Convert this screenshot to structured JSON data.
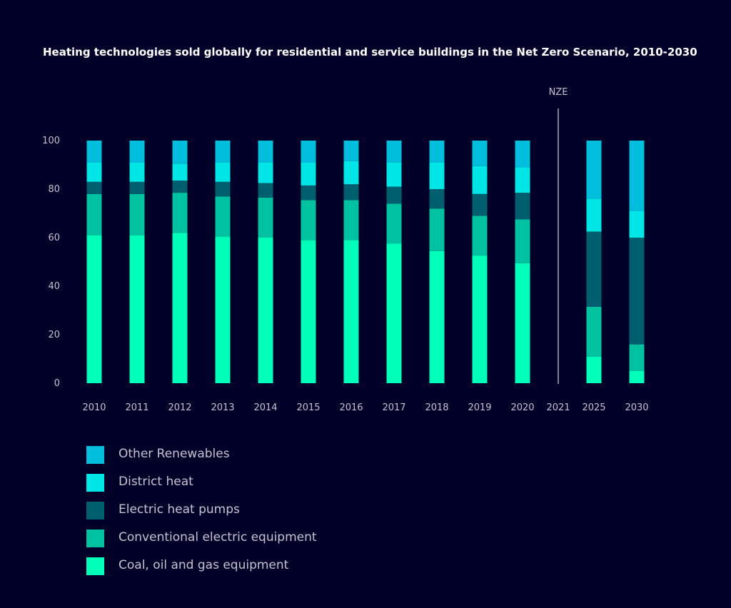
{
  "chart_data": {
    "type": "bar",
    "stacked": true,
    "title": "Heating technologies sold globally for residential and service buildings in the Net Zero Scenario, 2010-2030",
    "xlabel": "",
    "ylabel": "",
    "ylim": [
      0,
      100
    ],
    "yticks": [
      "0",
      "20",
      "40",
      "60",
      "80",
      "100"
    ],
    "categories": [
      "2010",
      "2011",
      "2012",
      "2013",
      "2014",
      "2015",
      "2016",
      "2017",
      "2018",
      "2019",
      "2020",
      "2021",
      "2025",
      "2030"
    ],
    "divider": {
      "after_category": "2021",
      "label": "NZE"
    },
    "grid": false,
    "legend_position": "bottom-left",
    "series": [
      {
        "name": "Coal, oil and gas equipment",
        "color": "#00ffb9",
        "values": [
          61,
          61,
          62,
          60.5,
          60,
          59,
          59,
          57.5,
          54.5,
          52.5,
          49.5,
          null,
          11,
          5
        ]
      },
      {
        "name": "Conventional electric equipment",
        "color": "#00c1a0",
        "values": [
          17,
          17,
          16.5,
          16.5,
          16.5,
          16.5,
          16.5,
          16.5,
          17.5,
          16.5,
          18,
          null,
          20.5,
          11
        ]
      },
      {
        "name": "Electric heat pumps",
        "color": "#005f6e",
        "values": [
          5,
          5,
          5,
          6,
          6,
          6,
          6.5,
          7,
          8,
          9,
          11,
          null,
          31,
          44
        ]
      },
      {
        "name": "District heat",
        "color": "#00e5e5",
        "values": [
          8,
          8,
          7,
          8,
          8.5,
          9.5,
          9.5,
          10,
          11,
          11.5,
          10.5,
          null,
          13.5,
          11
        ]
      },
      {
        "name": "Other Renewables",
        "color": "#00bedc",
        "values": [
          9,
          9,
          9.5,
          9,
          9,
          9,
          8.5,
          9,
          9,
          10.5,
          11,
          null,
          24,
          29
        ]
      }
    ]
  }
}
